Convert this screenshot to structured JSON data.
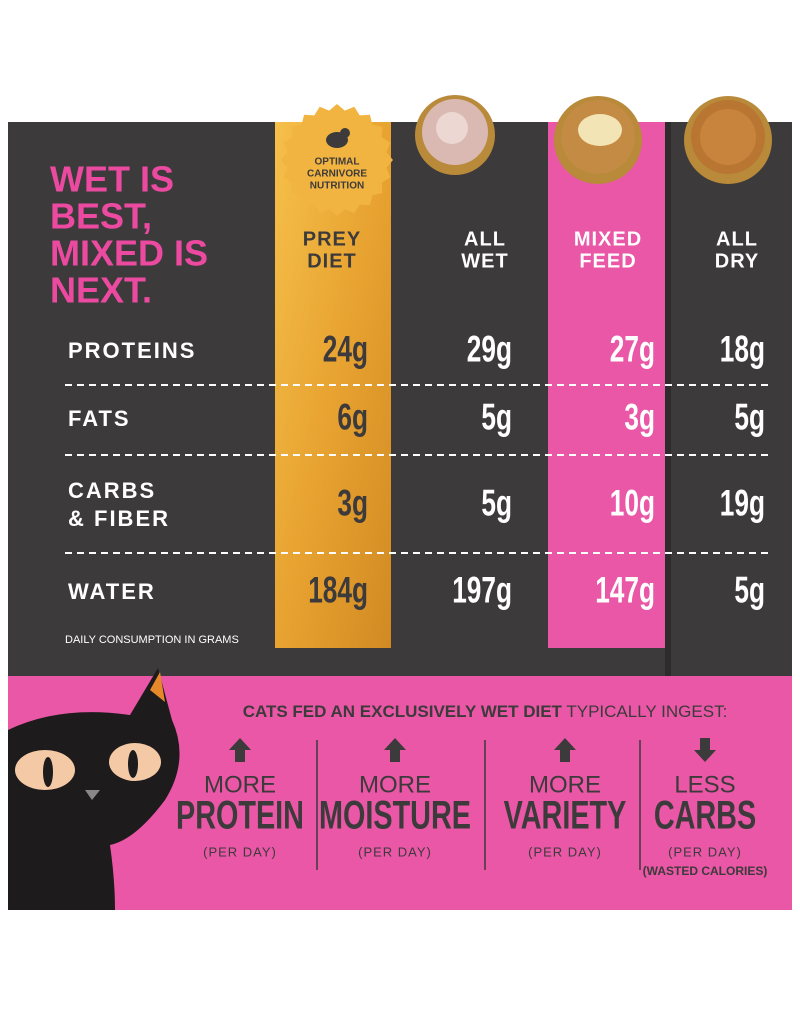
{
  "headline": [
    "WET IS",
    "BEST,",
    "MIXED IS",
    "NEXT."
  ],
  "badge": [
    "OPTIMAL",
    "CARNIVORE",
    "NUTRITION"
  ],
  "table": {
    "columns": [
      [
        "PREY",
        "DIET"
      ],
      [
        "ALL",
        "WET"
      ],
      [
        "MIXED",
        "FEED"
      ],
      [
        "ALL",
        "DRY"
      ]
    ],
    "rows": [
      {
        "label": [
          "PROTEINS"
        ],
        "values": [
          "24g",
          "29g",
          "27g",
          "18g"
        ]
      },
      {
        "label": [
          "FATS"
        ],
        "values": [
          "6g",
          "5g",
          "3g",
          "5g"
        ]
      },
      {
        "label": [
          "CARBS",
          "& FIBER"
        ],
        "values": [
          "3g",
          "5g",
          "10g",
          "19g"
        ]
      },
      {
        "label": [
          "WATER"
        ],
        "values": [
          "184g",
          "197g",
          "147g",
          "5g"
        ]
      }
    ],
    "note": "DAILY CONSUMPTION IN GRAMS"
  },
  "callout": {
    "intro_bold": "CATS FED AN EXCLUSIVELY WET DIET",
    "intro_rest": " TYPICALLY INGEST:",
    "items": [
      {
        "direction": "MORE",
        "word": "PROTEIN",
        "unit": "(PER DAY)"
      },
      {
        "direction": "MORE",
        "word": "MOISTURE",
        "unit": "(PER DAY)"
      },
      {
        "direction": "MORE",
        "word": "VARIETY",
        "unit": "(PER DAY)"
      },
      {
        "direction": "LESS",
        "word": "CARBS",
        "unit": "(PER DAY)",
        "note": "(WASTED CALORIES)"
      }
    ]
  }
}
